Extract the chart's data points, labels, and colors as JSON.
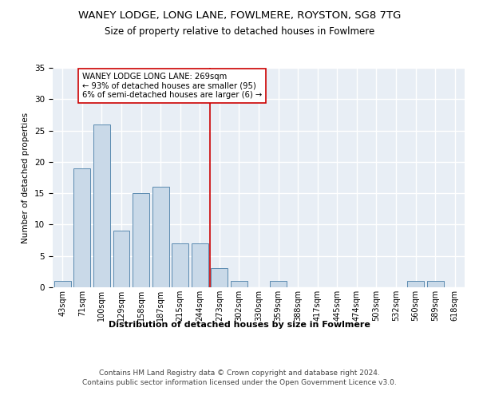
{
  "title": "WANEY LODGE, LONG LANE, FOWLMERE, ROYSTON, SG8 7TG",
  "subtitle": "Size of property relative to detached houses in Fowlmere",
  "xlabel": "Distribution of detached houses by size in Fowlmere",
  "ylabel": "Number of detached properties",
  "bar_color": "#c9d9e8",
  "bar_edge_color": "#5a8ab0",
  "categories": [
    "43sqm",
    "71sqm",
    "100sqm",
    "129sqm",
    "158sqm",
    "187sqm",
    "215sqm",
    "244sqm",
    "273sqm",
    "302sqm",
    "330sqm",
    "359sqm",
    "388sqm",
    "417sqm",
    "445sqm",
    "474sqm",
    "503sqm",
    "532sqm",
    "560sqm",
    "589sqm",
    "618sqm"
  ],
  "values": [
    1,
    19,
    26,
    9,
    15,
    16,
    7,
    7,
    3,
    1,
    0,
    1,
    0,
    0,
    0,
    0,
    0,
    0,
    1,
    1,
    0
  ],
  "vline_index": 8,
  "vline_color": "#cc0000",
  "annotation_text": "WANEY LODGE LONG LANE: 269sqm\n← 93% of detached houses are smaller (95)\n6% of semi-detached houses are larger (6) →",
  "ylim": [
    0,
    35
  ],
  "yticks": [
    0,
    5,
    10,
    15,
    20,
    25,
    30,
    35
  ],
  "footer": "Contains HM Land Registry data © Crown copyright and database right 2024.\nContains public sector information licensed under the Open Government Licence v3.0.",
  "plot_bg_color": "#e8eef5",
  "fig_bg_color": "#ffffff"
}
